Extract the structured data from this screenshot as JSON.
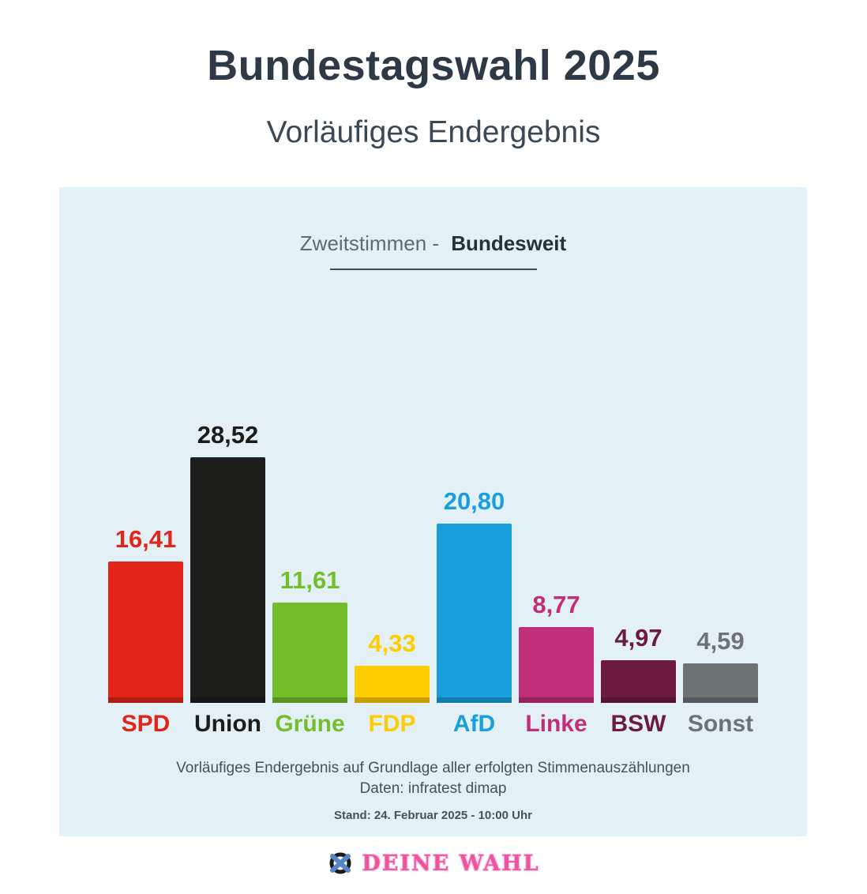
{
  "page": {
    "title": "Bundestagswahl 2025",
    "subtitle": "Vorläufiges Endergebnis"
  },
  "panel": {
    "header_prefix": "Zweitstimmen -",
    "header_emphasis": "Bundesweit",
    "footnote_line1": "Vorläufiges Endergebnis auf Grundlage aller erfolgten Stimmenauszählungen",
    "footnote_line2": "Daten: infratest dimap",
    "stand_line": "Stand: 24. Februar 2025  - 10:00 Uhr",
    "background_color": "#e3f0f5"
  },
  "chart_data": {
    "type": "bar",
    "title": "Zweitstimmen - Bundesweit",
    "subtitle": "Vorläufiges Endergebnis",
    "unit": "percent",
    "ylim": [
      0,
      30
    ],
    "grid": false,
    "legend": "none",
    "value_label_position": "above-bar",
    "categories": [
      "SPD",
      "Union",
      "Grüne",
      "FDP",
      "AfD",
      "Linke",
      "BSW",
      "Sonst"
    ],
    "values": [
      16.41,
      28.52,
      11.61,
      4.33,
      20.8,
      8.77,
      4.97,
      4.59
    ],
    "parties": [
      {
        "name": "SPD",
        "value": 16.41,
        "value_label": "16,41",
        "color": "#e2241b"
      },
      {
        "name": "Union",
        "value": 28.52,
        "value_label": "28,52",
        "color": "#1d1d1b"
      },
      {
        "name": "Grüne",
        "value": 11.61,
        "value_label": "11,61",
        "color": "#72bf2b"
      },
      {
        "name": "FDP",
        "value": 4.33,
        "value_label": "4,33",
        "color": "#ffcc00"
      },
      {
        "name": "AfD",
        "value": 20.8,
        "value_label": "20,80",
        "color": "#199fdd"
      },
      {
        "name": "Linke",
        "value": 8.77,
        "value_label": "8,77",
        "color": "#c02e79"
      },
      {
        "name": "BSW",
        "value": 4.97,
        "value_label": "4,97",
        "color": "#6d1a43"
      },
      {
        "name": "Sonst",
        "value": 4.59,
        "value_label": "4,59",
        "color": "#6d7275"
      }
    ]
  },
  "logo": {
    "text": "DEINE WAHL",
    "icon": "ballot-x-circle-icon",
    "text_color": "#ee55a0",
    "icon_ring_color": "#1a1a1a",
    "icon_cross_color": "#5b84cc"
  }
}
